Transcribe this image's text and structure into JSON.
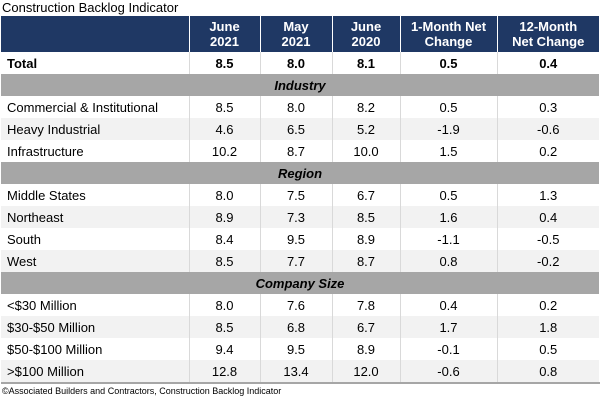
{
  "title": "Construction Backlog Indicator",
  "footer": "©Associated Builders and Contractors, Construction Backlog Indicator",
  "colors": {
    "header_bg": "#1F3864",
    "header_text": "#FFFFFF",
    "section_band_bg": "#A6A6A6",
    "row_stripe": "#F2F2F2",
    "grid_line": "#D9D9D9"
  },
  "columns": [
    {
      "line1": "June",
      "line2": "2021"
    },
    {
      "line1": "May",
      "line2": "2021"
    },
    {
      "line1": "June",
      "line2": "2020"
    },
    {
      "line1": "1-Month Net",
      "line2": "Change"
    },
    {
      "line1": "12-Month",
      "line2": "Net Change"
    }
  ],
  "total": {
    "label": "Total",
    "values": [
      "8.5",
      "8.0",
      "8.1",
      "0.5",
      "0.4"
    ]
  },
  "sections": [
    {
      "name": "Industry",
      "rows": [
        {
          "label": "Commercial & Institutional",
          "values": [
            "8.5",
            "8.0",
            "8.2",
            "0.5",
            "0.3"
          ]
        },
        {
          "label": "Heavy Industrial",
          "values": [
            "4.6",
            "6.5",
            "5.2",
            "-1.9",
            "-0.6"
          ]
        },
        {
          "label": "Infrastructure",
          "values": [
            "10.2",
            "8.7",
            "10.0",
            "1.5",
            "0.2"
          ]
        }
      ]
    },
    {
      "name": "Region",
      "rows": [
        {
          "label": "Middle States",
          "values": [
            "8.0",
            "7.5",
            "6.7",
            "0.5",
            "1.3"
          ]
        },
        {
          "label": "Northeast",
          "values": [
            "8.9",
            "7.3",
            "8.5",
            "1.6",
            "0.4"
          ]
        },
        {
          "label": "South",
          "values": [
            "8.4",
            "9.5",
            "8.9",
            "-1.1",
            "-0.5"
          ]
        },
        {
          "label": "West",
          "values": [
            "8.5",
            "7.7",
            "8.7",
            "0.8",
            "-0.2"
          ]
        }
      ]
    },
    {
      "name": "Company Size",
      "rows": [
        {
          "label": "<$30 Million",
          "values": [
            "8.0",
            "7.6",
            "7.8",
            "0.4",
            "0.2"
          ]
        },
        {
          "label": "$30-$50 Million",
          "values": [
            "8.5",
            "6.8",
            "6.7",
            "1.7",
            "1.8"
          ]
        },
        {
          "label": "$50-$100 Million",
          "values": [
            "9.4",
            "9.5",
            "8.9",
            "-0.1",
            "0.5"
          ]
        },
        {
          "label": ">$100 Million",
          "values": [
            "12.8",
            "13.4",
            "12.0",
            "-0.6",
            "0.8"
          ]
        }
      ]
    }
  ],
  "chart_data": {
    "type": "table",
    "title": "Construction Backlog Indicator",
    "columns": [
      "",
      "June 2021",
      "May 2021",
      "June 2020",
      "1-Month Net Change",
      "12-Month Net Change"
    ],
    "rows": [
      [
        "Total",
        8.5,
        8.0,
        8.1,
        0.5,
        0.4
      ],
      [
        "Industry",
        null,
        null,
        null,
        null,
        null
      ],
      [
        "Commercial & Institutional",
        8.5,
        8.0,
        8.2,
        0.5,
        0.3
      ],
      [
        "Heavy Industrial",
        4.6,
        6.5,
        5.2,
        -1.9,
        -0.6
      ],
      [
        "Infrastructure",
        10.2,
        8.7,
        10.0,
        1.5,
        0.2
      ],
      [
        "Region",
        null,
        null,
        null,
        null,
        null
      ],
      [
        "Middle States",
        8.0,
        7.5,
        6.7,
        0.5,
        1.3
      ],
      [
        "Northeast",
        8.9,
        7.3,
        8.5,
        1.6,
        0.4
      ],
      [
        "South",
        8.4,
        9.5,
        8.9,
        -1.1,
        -0.5
      ],
      [
        "West",
        8.5,
        7.7,
        8.7,
        0.8,
        -0.2
      ],
      [
        "Company Size",
        null,
        null,
        null,
        null,
        null
      ],
      [
        "<$30 Million",
        8.0,
        7.6,
        7.8,
        0.4,
        0.2
      ],
      [
        "$30-$50 Million",
        8.5,
        6.8,
        6.7,
        1.7,
        1.8
      ],
      [
        "$50-$100 Million",
        9.4,
        9.5,
        8.9,
        -0.1,
        0.5
      ],
      [
        ">$100 Million",
        12.8,
        13.4,
        12.0,
        -0.6,
        0.8
      ]
    ],
    "source_note": "©Associated Builders and Contractors, Construction Backlog Indicator"
  }
}
